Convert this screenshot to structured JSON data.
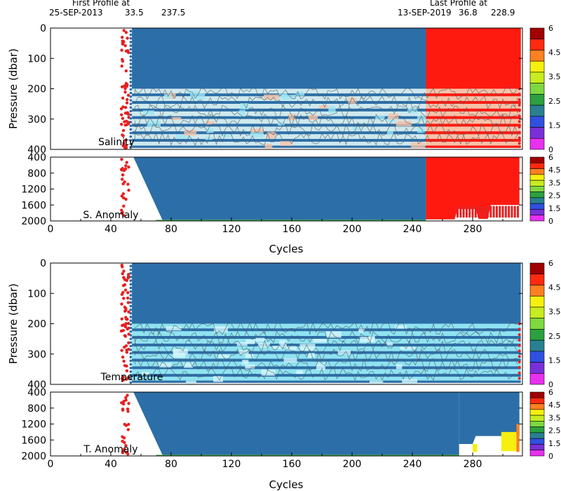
{
  "header": {
    "first_label": "First Profile at",
    "first_date": "25-SEP-2013",
    "first_lat": "33.5",
    "first_lon": "237.5",
    "last_label": "Last Profile at",
    "last_date": "13-SEP-2019",
    "last_lat": "36.8",
    "last_lon": "228.9"
  },
  "colors": {
    "deep_blue": "#2c6fa8",
    "light_cyan": "#cfe9ee",
    "cyan": "#8fe3f2",
    "salmon": "#f6c2a8",
    "red": "#ff1a10",
    "red_dot": "#e82020"
  },
  "chart_data": [
    {
      "type": "heatmap",
      "panel_label": "Salinity",
      "ylabel": "Pressure (dbar)",
      "xlim": [
        0,
        313
      ],
      "ylim": [
        0,
        400
      ],
      "x_ticks": [],
      "y_ticks": [
        "0",
        "100",
        "200",
        "300",
        "400"
      ],
      "y_tick_values": [
        0,
        100,
        200,
        300,
        400
      ],
      "colorbar_labels": [
        "6",
        "4.5",
        "3.5",
        "2.5",
        "1.5",
        "0"
      ],
      "first_cycle": 54,
      "last_cycle": 311,
      "flagged_from_cycle": 249,
      "flag_value": 4,
      "sampled_levels_dbar": [
        0,
        200,
        225,
        250,
        275,
        300,
        325,
        350,
        375,
        395
      ]
    },
    {
      "type": "heatmap",
      "panel_label": "S. Anomaly",
      "xlabel": "Cycles",
      "xlim": [
        0,
        313
      ],
      "ylim": [
        400,
        2000
      ],
      "x_ticks": [
        "0",
        "40",
        "80",
        "120",
        "160",
        "200",
        "240",
        "280"
      ],
      "x_tick_values": [
        0,
        40,
        80,
        120,
        160,
        200,
        240,
        280
      ],
      "y_ticks": [
        "400",
        "800",
        "1200",
        "1600",
        "2000"
      ],
      "y_tick_values": [
        400,
        800,
        1200,
        1600,
        2000
      ],
      "colorbar_labels": [
        "6",
        "4.5",
        "3.5",
        "2.5",
        "1.5",
        "0"
      ],
      "flagged_from_cycle": 249,
      "flag_value": 4
    },
    {
      "type": "heatmap",
      "panel_label": "Temperature",
      "ylabel": "Pressure (dbar)",
      "xlim": [
        0,
        313
      ],
      "ylim": [
        0,
        400
      ],
      "y_ticks": [
        "0",
        "100",
        "200",
        "300",
        "400"
      ],
      "y_tick_values": [
        0,
        100,
        200,
        300,
        400
      ],
      "colorbar_labels": [
        "6",
        "4.5",
        "3.5",
        "2.5",
        "1.5",
        "0"
      ],
      "first_cycle": 54,
      "last_cycle": 311
    },
    {
      "type": "heatmap",
      "panel_label": "T. Anomaly",
      "xlabel": "Cycles",
      "xlim": [
        0,
        313
      ],
      "ylim": [
        400,
        2000
      ],
      "x_ticks": [
        "0",
        "40",
        "80",
        "120",
        "160",
        "200",
        "240",
        "280"
      ],
      "x_tick_values": [
        0,
        40,
        80,
        120,
        160,
        200,
        240,
        280
      ],
      "y_ticks": [
        "400",
        "800",
        "1200",
        "1600",
        "2000"
      ],
      "y_tick_values": [
        400,
        800,
        1200,
        1600,
        2000
      ],
      "colorbar_labels": [
        "6",
        "4.5",
        "3.5",
        "2.5",
        "1.5",
        "0"
      ],
      "flagged_cycles": [
        280,
        311
      ],
      "flag_value": 3.5
    }
  ],
  "colorbar": [
    {
      "label": "6",
      "color": "#a00000"
    },
    {
      "label": "",
      "color": "#ff2a10"
    },
    {
      "label": "4.5",
      "color": "#ff8020"
    },
    {
      "label": "",
      "color": "#f5f010"
    },
    {
      "label": "3.5",
      "color": "#c8ec20"
    },
    {
      "label": "",
      "color": "#7ed840"
    },
    {
      "label": "2.5",
      "color": "#2ca040"
    },
    {
      "label": "",
      "color": "#2a8090"
    },
    {
      "label": "1.5",
      "color": "#3050e0"
    },
    {
      "label": "",
      "color": "#7a30d8"
    },
    {
      "label": "0",
      "color": "#e830f0"
    }
  ]
}
